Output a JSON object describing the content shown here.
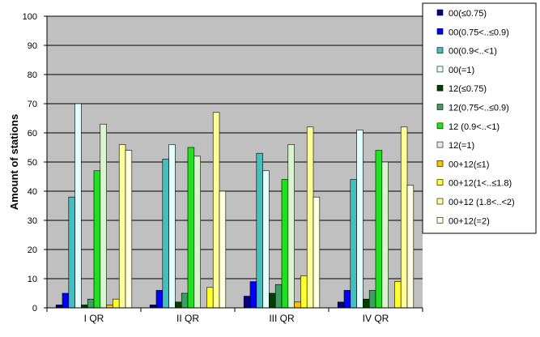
{
  "chart_data": {
    "type": "bar",
    "title": "",
    "xlabel": "",
    "ylabel": "Amount of stations",
    "ylim": [
      0,
      100
    ],
    "yticks": [
      0,
      10,
      20,
      30,
      40,
      50,
      60,
      70,
      80,
      90,
      100
    ],
    "grid": true,
    "legend_position": "right",
    "categories": [
      "I QR",
      "II QR",
      "III QR",
      "IV QR"
    ],
    "series": [
      {
        "name": "00(≤0.75)",
        "color": "#000080",
        "values": [
          1,
          1,
          4,
          2
        ]
      },
      {
        "name": "00(0.75<..≤0.9)",
        "color": "#0000FF",
        "values": [
          5,
          6,
          9,
          6
        ]
      },
      {
        "name": "00(0.9<..<1)",
        "color": "#40C0C0",
        "values": [
          38,
          51,
          53,
          44
        ]
      },
      {
        "name": "00(=1)",
        "color": "#E0FFFF",
        "values": [
          70,
          56,
          47,
          61
        ]
      },
      {
        "name": "12(≤0.75)",
        "color": "#004000",
        "values": [
          1,
          2,
          5,
          3
        ]
      },
      {
        "name": "12(0.75<..≤0.9)",
        "color": "#3CA060",
        "values": [
          3,
          5,
          8,
          6
        ]
      },
      {
        "name": "12 (0.9<..<1)",
        "color": "#20E020",
        "values": [
          47,
          55,
          44,
          54
        ]
      },
      {
        "name": "12(=1)",
        "color": "#D8F5D0",
        "values": [
          63,
          52,
          56,
          50
        ]
      },
      {
        "name": "00+12(≤1)",
        "color": "#FFC000",
        "values": [
          1,
          0,
          2,
          0
        ]
      },
      {
        "name": "00+12(1<..≤1.8)",
        "color": "#FFFF30",
        "values": [
          3,
          7,
          11,
          9
        ]
      },
      {
        "name": "00+12 (1.8<..<2)",
        "color": "#FFFF99",
        "values": [
          56,
          67,
          62,
          62
        ]
      },
      {
        "name": "00+12(=2)",
        "color": "#FFFFE0",
        "values": [
          54,
          40,
          38,
          42
        ]
      }
    ]
  }
}
